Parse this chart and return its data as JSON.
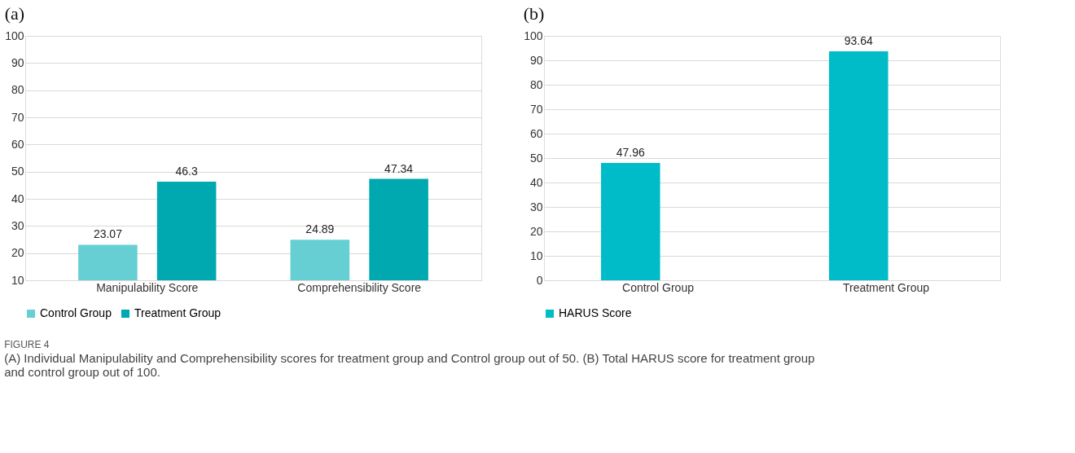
{
  "chart_data": [
    {
      "type": "bar",
      "title": "(a)",
      "categories": [
        "Manipulability Score",
        "Comprehensibility Score"
      ],
      "series": [
        {
          "name": "Control Group",
          "color": "#66cfd4",
          "values": [
            23.07,
            24.89
          ]
        },
        {
          "name": "Treatment Group",
          "color": "#00a8b0",
          "values": [
            46.3,
            47.34
          ]
        }
      ],
      "ylim": [
        10,
        100
      ],
      "yticks": [
        10,
        20,
        30,
        40,
        50,
        60,
        70,
        80,
        90,
        100
      ],
      "grid": "y",
      "legend": "bottom",
      "data_labels": true
    },
    {
      "type": "bar",
      "title": "(b)",
      "categories": [
        "Control Group",
        "Treatment Group"
      ],
      "series": [
        {
          "name": "HARUS Score",
          "color": "#00bcc8",
          "values": [
            47.96,
            93.64
          ]
        }
      ],
      "ylim": [
        0,
        100
      ],
      "yticks": [
        0,
        10,
        20,
        30,
        40,
        50,
        60,
        70,
        80,
        90,
        100
      ],
      "grid": "y",
      "legend": "bottom",
      "data_labels": true,
      "annotations": [
        "FIGURE 4",
        "(A) Individual Manipulability and Comprehensibility scores for treatment group and Control group out of 50. (B) Total HARUS score for treatment group and control group out of 100."
      ]
    }
  ]
}
